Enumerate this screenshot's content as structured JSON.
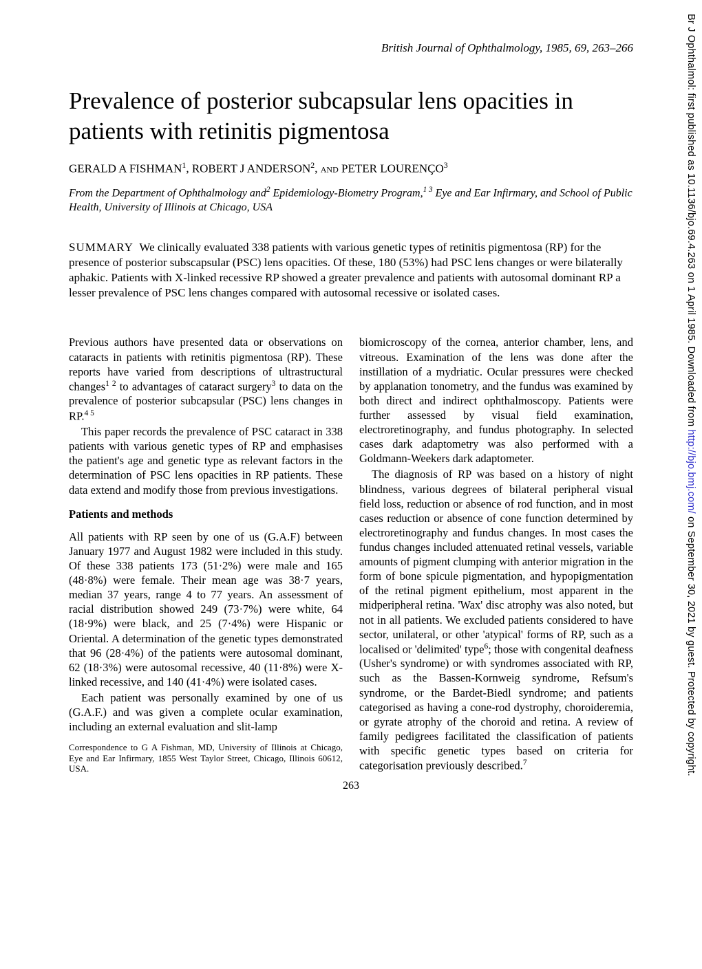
{
  "journal_header": "British Journal of Ophthalmology, 1985, 69, 263–266",
  "title": "Prevalence of posterior subcapsular lens opacities in patients with retinitis pigmentosa",
  "authors_html": "GERALD A FISHMAN<sup>1</sup>, ROBERT J ANDERSON<sup>2</sup>, <span style='font-variant:small-caps'>and</span> PETER LOURENÇO<sup>3</sup>",
  "affiliation_html": "From the Department of Ophthalmology and<sup>2</sup> Epidemiology-Biometry Program,<sup>1 3</sup> Eye and Ear Infirmary, and School of Public Health, University of Illinois at Chicago, USA",
  "summary_label": "SUMMARY",
  "summary_text": "We clinically evaluated 338 patients with various genetic types of retinitis pigmentosa (RP) for the presence of posterior subscapsular (PSC) lens opacities. Of these, 180 (53%) had PSC lens changes or were bilaterally aphakic. Patients with X-linked recessive RP showed a greater prevalence and patients with autosomal dominant RP a lesser prevalence of PSC lens changes compared with autosomal recessive or isolated cases.",
  "left_column": {
    "p1_html": "Previous authors have presented data or observations on cataracts in patients with retinitis pigmentosa (RP). These reports have varied from descriptions of ultrastructural changes<sup>1 2</sup> to advantages of cataract surgery<sup>3</sup> to data on the prevalence of posterior subcapsular (PSC) lens changes in RP.<sup>4 5</sup>",
    "p2_html": "This paper records the prevalence of PSC cataract in 338 patients with various genetic types of RP and emphasises the patient's age and genetic type as relevant factors in the determination of PSC lens opacities in RP patients. These data extend and modify those from previous investigations.",
    "section_heading": "Patients and methods",
    "p3_html": "All patients with RP seen by one of us (G.A.F) between January 1977 and August 1982 were included in this study. Of these 338 patients 173 (51·2%) were male and 165 (48·8%) were female. Their mean age was 38·7 years, median 37 years, range 4 to 77 years. An assessment of racial distribution showed 249 (73·7%) were white, 64 (18·9%) were black, and 25 (7·4%) were Hispanic or Oriental. A determination of the genetic types demonstrated that 96 (28·4%) of the patients were autosomal dominant, 62 (18·3%) were autosomal recessive, 40 (11·8%) were X-linked recessive, and 140 (41·4%) were isolated cases.",
    "p4_html": "Each patient was personally examined by one of us (G.A.F.) and was given a complete ocular examination, including an external evaluation and slit-lamp",
    "correspondence": "Correspondence to G A Fishman, MD, University of Illinois at Chicago, Eye and Ear Infirmary, 1855 West Taylor Street, Chicago, Illinois 60612, USA."
  },
  "right_column": {
    "p1_html": "biomicroscopy of the cornea, anterior chamber, lens, and vitreous. Examination of the lens was done after the instillation of a mydriatic. Ocular pressures were checked by applanation tonometry, and the fundus was examined by both direct and indirect ophthalmoscopy. Patients were further assessed by visual field examination, electroretinography, and fundus photography. In selected cases dark adaptometry was also performed with a Goldmann-Weekers dark adaptometer.",
    "p2_html": "The diagnosis of RP was based on a history of night blindness, various degrees of bilateral peripheral visual field loss, reduction or absence of rod function, and in most cases reduction or absence of cone function determined by electroretinography and fundus changes. In most cases the fundus changes included attenuated retinal vessels, variable amounts of pigment clumping with anterior migration in the form of bone spicule pigmentation, and hypopigmentation of the retinal pigment epithelium, most apparent in the midperipheral retina. 'Wax' disc atrophy was also noted, but not in all patients. We excluded patients considered to have sector, unilateral, or other 'atypical' forms of RP, such as a localised or 'delimited' type<sup>6</sup>; those with congenital deafness (Usher's syndrome) or with syndromes associated with RP, such as the Bassen-Kornweig syndrome, Refsum's syndrome, or the Bardet-Biedl syndrome; and patients categorised as having a cone-rod dystrophy, choroideremia, or gyrate atrophy of the choroid and retina. A review of family pedigrees facilitated the classification of patients with specific genetic types based on criteria for categorisation previously described.<sup>7</sup>"
  },
  "page_number": "263",
  "sidebar_prefix": "Br J Ophthalmol: first published as 10.1136/bjo.69.4.263 on 1 April 1985. Downloaded from ",
  "sidebar_link_text": "http://bjo.bmj.com/",
  "sidebar_suffix": " on September 30, 2021 by guest. Protected by copyright."
}
